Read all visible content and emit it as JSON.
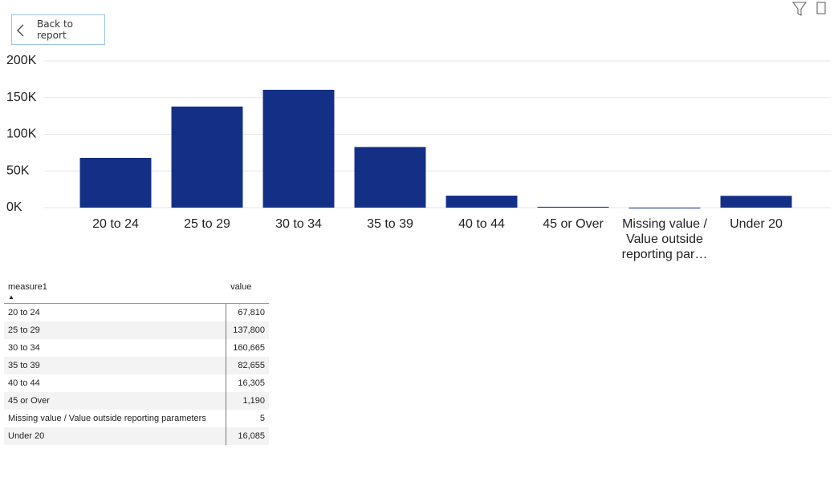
{
  "back_button": {
    "label": "Back to report"
  },
  "chart_data": {
    "type": "bar",
    "categories": [
      "20 to 24",
      "25 to 29",
      "30 to 34",
      "35 to 39",
      "40 to 44",
      "45 or Over",
      "Missing value / Value outside reporting par…",
      "Under 20"
    ],
    "values": [
      67810,
      137800,
      160665,
      82655,
      16305,
      1190,
      5,
      16085
    ],
    "color": "#142f86",
    "ylim": [
      0,
      200000
    ],
    "yticks": [
      {
        "value": 0,
        "label": "0K"
      },
      {
        "value": 50000,
        "label": "50K"
      },
      {
        "value": 100000,
        "label": "100K"
      },
      {
        "value": 150000,
        "label": "150K"
      },
      {
        "value": 200000,
        "label": "200K"
      }
    ],
    "grid": true
  },
  "table": {
    "columns": [
      "measure1",
      "value"
    ],
    "rows": [
      [
        "20 to 24",
        "67,810"
      ],
      [
        "25 to 29",
        "137,800"
      ],
      [
        "30 to 34",
        "160,665"
      ],
      [
        "35 to 39",
        "82,655"
      ],
      [
        "40 to 44",
        "16,305"
      ],
      [
        "45 or Over",
        "1,190"
      ],
      [
        "Missing value / Value outside reporting parameters",
        "5"
      ],
      [
        "Under 20",
        "16,085"
      ]
    ]
  }
}
